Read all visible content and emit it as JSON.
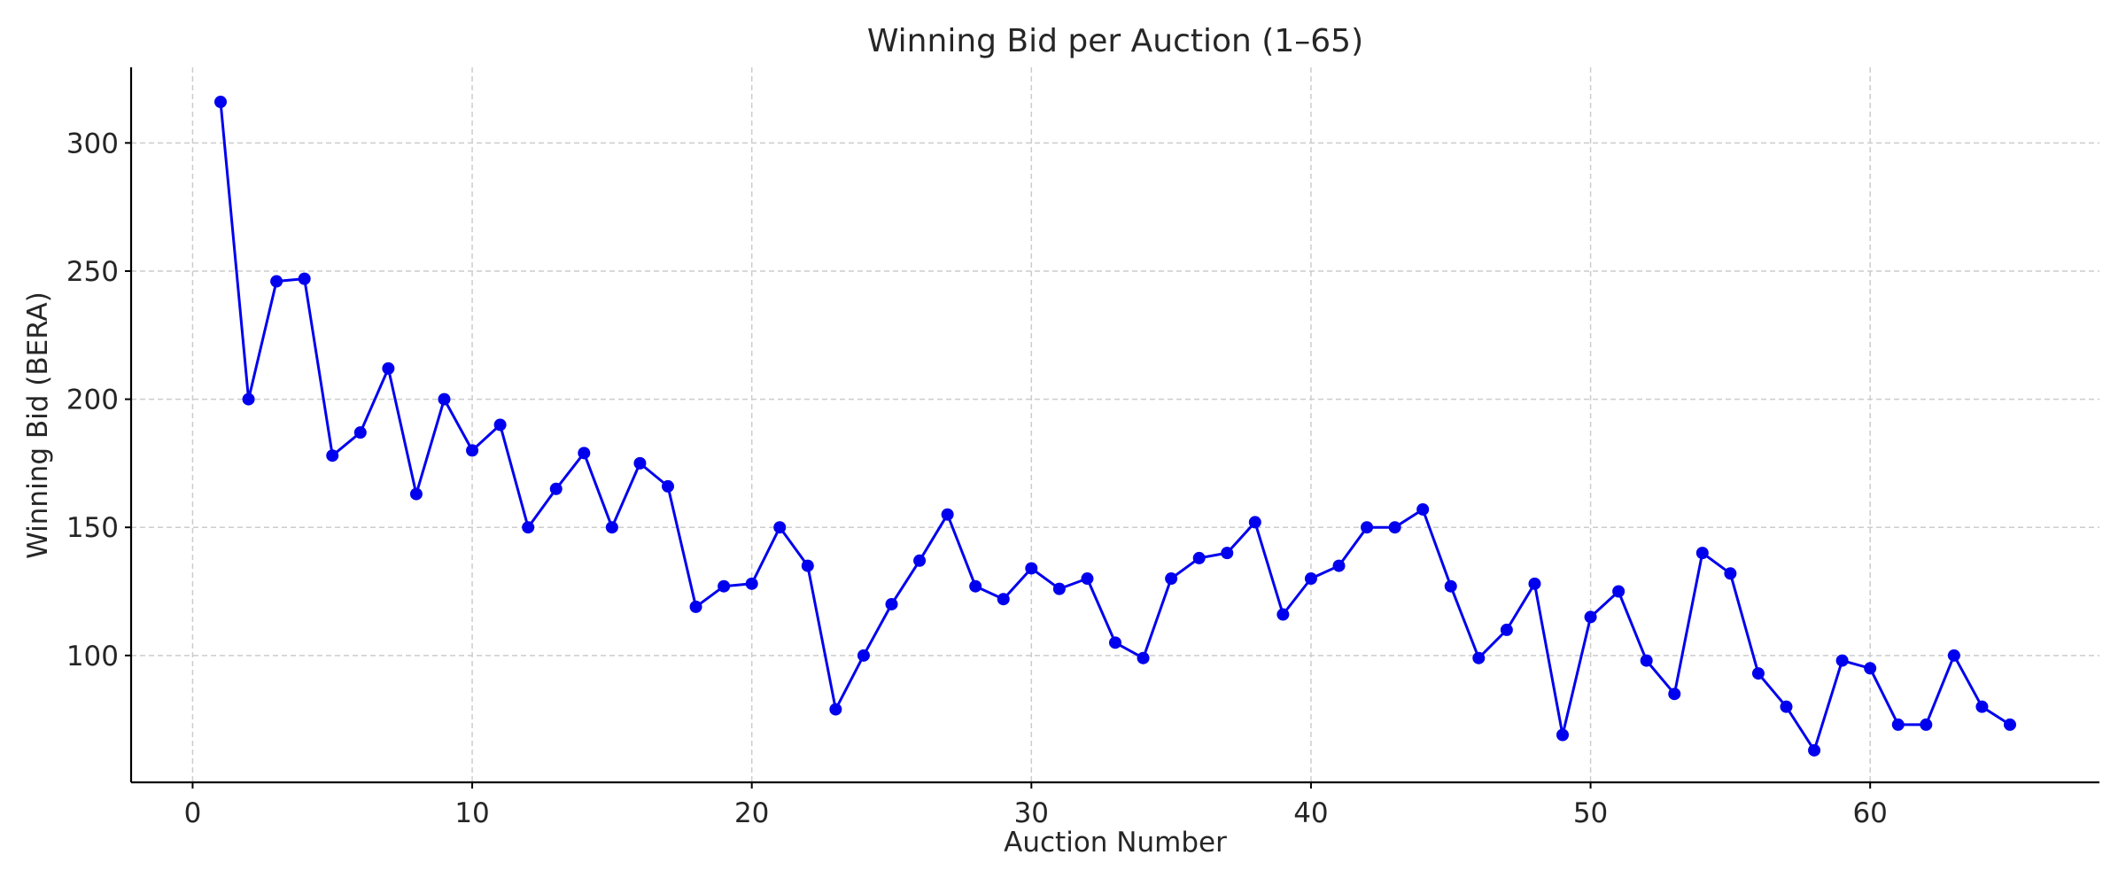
{
  "chart_data": {
    "type": "line",
    "title": "Winning Bid per Auction (1–65)",
    "xlabel": "Auction Number",
    "ylabel": "Winning Bid (BERA)",
    "xlim": [
      -2.2,
      68.2
    ],
    "ylim": [
      50.5,
      329.5
    ],
    "xticks": [
      0,
      10,
      20,
      30,
      40,
      50,
      60
    ],
    "yticks": [
      100,
      150,
      200,
      250,
      300
    ],
    "grid": true,
    "line_color": "#0000ee",
    "series": [
      {
        "x": [
          1,
          2,
          3,
          4,
          5,
          6,
          7,
          8,
          9,
          10,
          11,
          12,
          13,
          14,
          15,
          16,
          17,
          18,
          19,
          20,
          21,
          22,
          23,
          24,
          25,
          26,
          27,
          28,
          29,
          30,
          31,
          32,
          33,
          34,
          35,
          36,
          37,
          38,
          39,
          40,
          41,
          42,
          43,
          44,
          45,
          46,
          47,
          48,
          49,
          50,
          51,
          52,
          53,
          54,
          55,
          56,
          57,
          58,
          59,
          60,
          61,
          62,
          63,
          64,
          65
        ],
        "values": [
          316,
          200,
          246,
          247,
          178,
          187,
          212,
          163,
          200,
          180,
          190,
          150,
          165,
          179,
          150,
          175,
          166,
          119,
          127,
          128,
          150,
          135,
          79,
          100,
          120,
          137,
          155,
          127,
          122,
          134,
          126,
          130,
          105,
          99,
          130,
          138,
          140,
          152,
          116,
          130,
          135,
          150,
          150,
          157,
          127,
          99,
          110,
          128,
          69,
          115,
          125,
          98,
          85,
          140,
          132,
          93,
          80,
          63,
          98,
          95,
          73,
          73,
          100,
          80,
          73
        ]
      }
    ]
  }
}
